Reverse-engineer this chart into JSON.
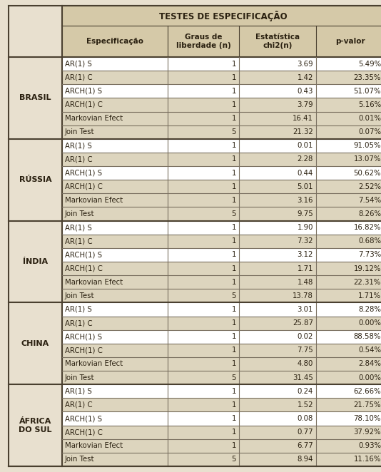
{
  "title": "TESTES DE ESPECIFICAÇÃO",
  "col_headers": [
    "Especificação",
    "Graus de\nliberdade (n)",
    "Estatística\nchi2(n)",
    "p-valor"
  ],
  "countries": [
    "BRASIL",
    "RÚSSIA",
    "ÍNDIA",
    "CHINA",
    "ÁFRICA\nDO SUL"
  ],
  "data": [
    [
      [
        "AR(1) S",
        1,
        "3.69",
        "5.49%"
      ],
      [
        "AR(1) C",
        1,
        "1.42",
        "23.35%"
      ],
      [
        "ARCH(1) S",
        1,
        "0.43",
        "51.07%"
      ],
      [
        "ARCH(1) C",
        1,
        "3.79",
        "5.16%"
      ],
      [
        "Markovian Efect",
        1,
        "16.41",
        "0.01%"
      ],
      [
        "Join Test",
        5,
        "21.32",
        "0.07%"
      ]
    ],
    [
      [
        "AR(1) S",
        1,
        "0.01",
        "91.05%"
      ],
      [
        "AR(1) C",
        1,
        "2.28",
        "13.07%"
      ],
      [
        "ARCH(1) S",
        1,
        "0.44",
        "50.62%"
      ],
      [
        "ARCH(1) C",
        1,
        "5.01",
        "2.52%"
      ],
      [
        "Markovian Efect",
        1,
        "3.16",
        "7.54%"
      ],
      [
        "Join Test",
        5,
        "9.75",
        "8.26%"
      ]
    ],
    [
      [
        "AR(1) S",
        1,
        "1.90",
        "16.82%"
      ],
      [
        "AR(1) C",
        1,
        "7.32",
        "0.68%"
      ],
      [
        "ARCH(1) S",
        1,
        "3.12",
        "7.73%"
      ],
      [
        "ARCH(1) C",
        1,
        "1.71",
        "19.12%"
      ],
      [
        "Markovian Efect",
        1,
        "1.48",
        "22.31%"
      ],
      [
        "Join Test",
        5,
        "13.78",
        "1.71%"
      ]
    ],
    [
      [
        "AR(1) S",
        1,
        "3.01",
        "8.28%"
      ],
      [
        "AR(1) C",
        1,
        "25.87",
        "0.00%"
      ],
      [
        "ARCH(1) S",
        1,
        "0.02",
        "88.58%"
      ],
      [
        "ARCH(1) C",
        1,
        "7.75",
        "0.54%"
      ],
      [
        "Markovian Efect",
        1,
        "4.80",
        "2.84%"
      ],
      [
        "Join Test",
        5,
        "31.45",
        "0.00%"
      ]
    ],
    [
      [
        "AR(1) S",
        1,
        "0.24",
        "62.66%"
      ],
      [
        "AR(1) C",
        1,
        "1.52",
        "21.75%"
      ],
      [
        "ARCH(1) S",
        1,
        "0.08",
        "78.10%"
      ],
      [
        "ARCH(1) C",
        1,
        "0.77",
        "37.92%"
      ],
      [
        "Markovian Efect",
        1,
        "6.77",
        "0.93%"
      ],
      [
        "Join Test",
        5,
        "8.94",
        "11.16%"
      ]
    ]
  ],
  "fig_bg": "#E8E0CF",
  "header_bg": "#D5C9A8",
  "row_bg_white": "#FFFFFF",
  "row_bg_shaded": "#DDD5BE",
  "border_thick": "#4A4030",
  "border_thin": "#7A7060",
  "text_dark": "#2A2010",
  "text_body": "#2A2010",
  "shaded_row_idx": [
    1,
    3,
    4,
    5
  ]
}
